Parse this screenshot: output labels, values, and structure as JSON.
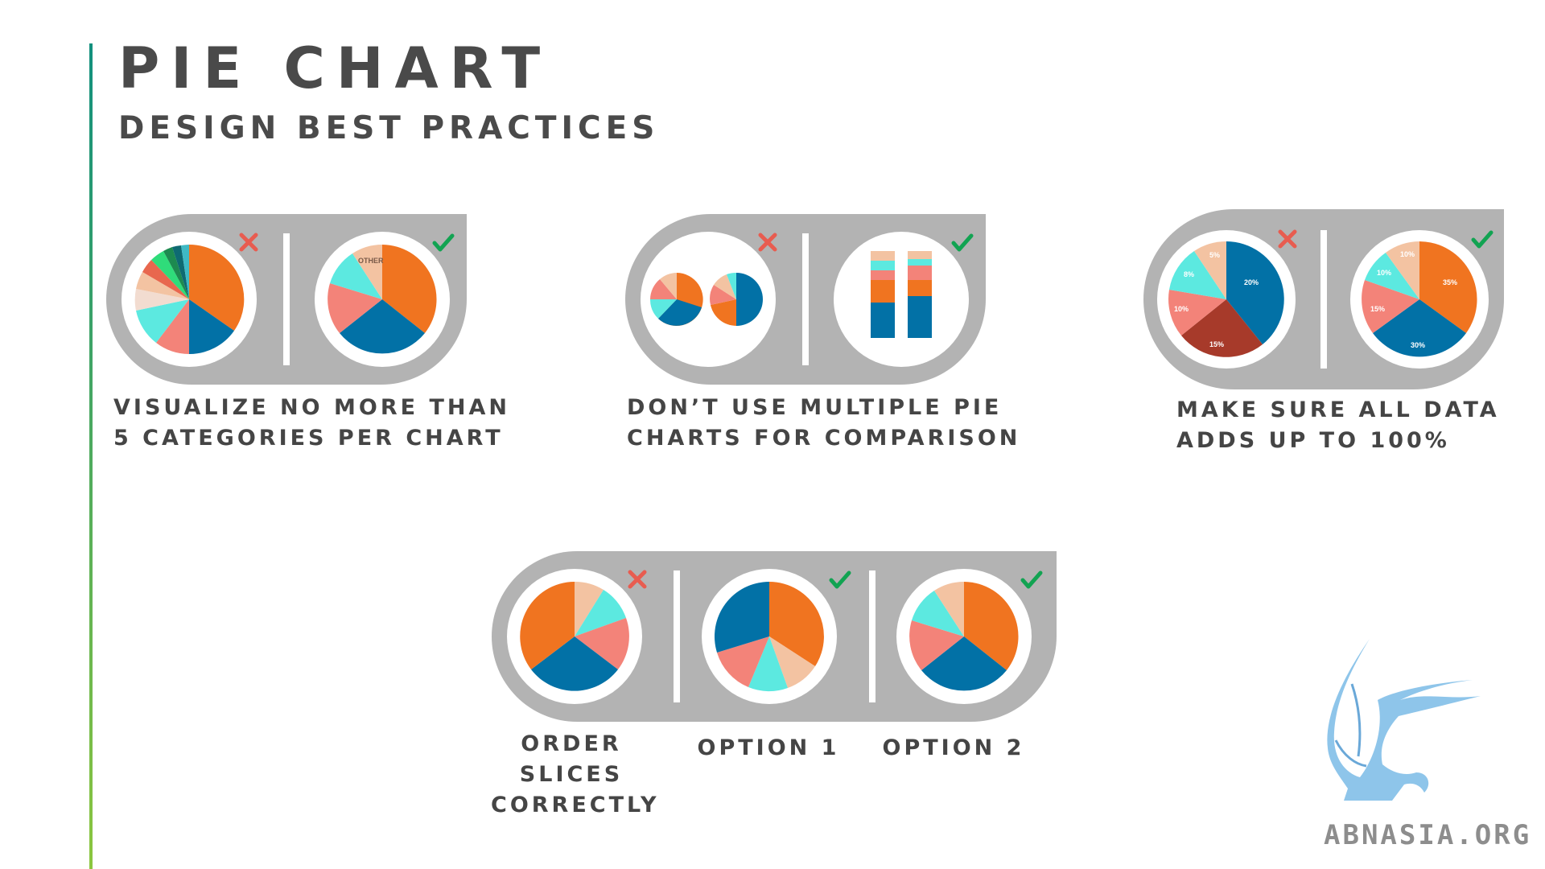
{
  "title": "PIE CHART",
  "subtitle": "DESIGN BEST PRACTICES",
  "panels": [
    {
      "caption": [
        "VISUALIZE NO MORE THAN",
        "5 CATEGORIES PER CHART"
      ],
      "bad_label": "",
      "good_label": "OTHER"
    },
    {
      "caption": [
        "DON’T USE MULTIPLE PIE",
        "CHARTS FOR COMPARISON"
      ]
    },
    {
      "caption": [
        "MAKE SURE ALL DATA",
        "ADDS UP TO 100%"
      ],
      "bad_labels": [
        "5%",
        "8%",
        "10%",
        "15%",
        "20%"
      ],
      "good_labels": [
        "10%",
        "10%",
        "15%",
        "30%",
        "35%"
      ]
    },
    {
      "captions": [
        [
          "ORDER",
          "SLICES",
          "CORRECTLY"
        ],
        [
          "OPTION 1"
        ],
        [
          "OPTION 2"
        ]
      ]
    }
  ],
  "colors": {
    "orange": "#f07420",
    "blue": "#0271a6",
    "salmon": "#f38379",
    "cyan": "#5ce9e0",
    "peach": "#f3c3a2",
    "darkred": "#a73a2a",
    "panel_gray": "#b3b3b3",
    "cross_red": "#e85c50",
    "check_green": "#12a352"
  },
  "icons": [
    "cross-icon",
    "check-icon",
    "griffin-logo"
  ],
  "logo_text": "ABNASIA.ORG"
}
